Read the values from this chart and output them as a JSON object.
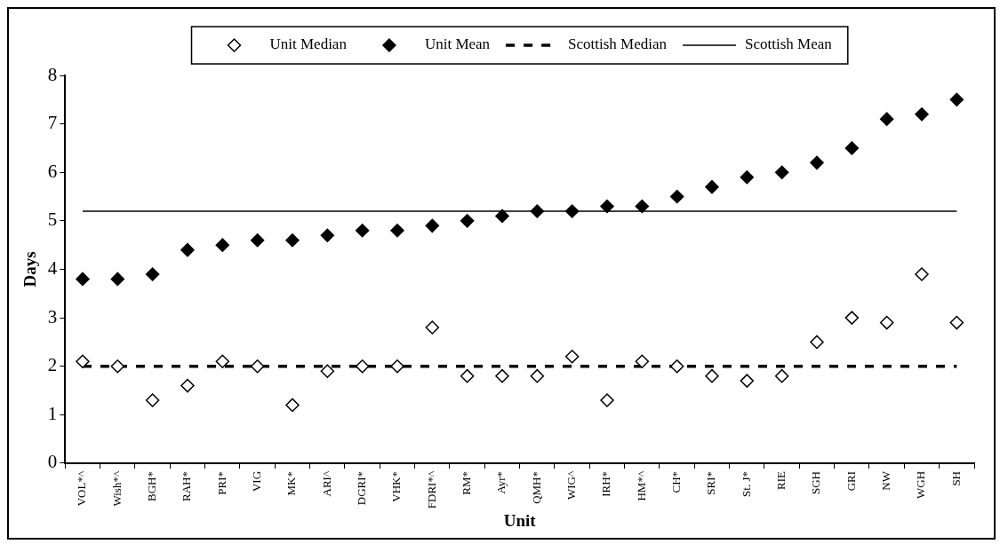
{
  "chart_data": {
    "type": "scatter",
    "xlabel": "Unit",
    "ylabel": "Days",
    "categories": [
      "VOL*^",
      "Wish*^",
      "BGH*",
      "RAH*",
      "PRI*",
      "VIG",
      "MK*",
      "ARI^",
      "DGRI*",
      "VHK*",
      "FDRI*^",
      "RM*",
      "Ayr*",
      "QMH*",
      "WIG^",
      "IRH*",
      "HM*^",
      "CH*",
      "SRI*",
      "St. J*",
      "RIE",
      "SGH",
      "GRI",
      "NW",
      "WGH",
      "SH"
    ],
    "series": [
      {
        "name": "Unit Median",
        "marker": "diamond",
        "color": "#ffffff",
        "values": [
          2.1,
          2.0,
          1.3,
          1.6,
          2.1,
          2.0,
          1.2,
          1.9,
          2.0,
          2.0,
          2.8,
          1.8,
          1.8,
          1.8,
          2.2,
          1.3,
          2.1,
          2.0,
          1.8,
          1.7,
          1.8,
          2.5,
          3.0,
          2.9,
          3.9,
          2.9
        ]
      },
      {
        "name": "Unit Mean",
        "marker": "diamond",
        "color": "#000000",
        "values": [
          3.8,
          3.8,
          3.9,
          4.4,
          4.5,
          4.6,
          4.6,
          4.7,
          4.8,
          4.8,
          4.9,
          5.0,
          5.1,
          5.2,
          5.2,
          5.3,
          5.3,
          5.5,
          5.7,
          5.9,
          6.0,
          6.2,
          6.5,
          7.1,
          7.2,
          7.5
        ]
      },
      {
        "name": "Scottish Median",
        "type": "line",
        "marker": "none",
        "line_style": "dashed",
        "color": "#000000",
        "values": [
          2,
          2,
          2,
          2,
          2,
          2,
          2,
          2,
          2,
          2,
          2,
          2,
          2,
          2,
          2,
          2,
          2,
          2,
          2,
          2,
          2,
          2,
          2,
          2,
          2,
          2
        ]
      },
      {
        "name": "Scottish Mean",
        "type": "line",
        "marker": "none",
        "line_style": "solid",
        "color": "#000000",
        "values": [
          5.2,
          5.2,
          5.2,
          5.2,
          5.2,
          5.2,
          5.2,
          5.2,
          5.2,
          5.2,
          5.2,
          5.2,
          5.2,
          5.2,
          5.2,
          5.2,
          5.2,
          5.2,
          5.2,
          5.2,
          5.2,
          5.2,
          5.2,
          5.2,
          5.2,
          5.2
        ]
      }
    ],
    "ylim": [
      0,
      8
    ],
    "yticks": [
      0,
      1,
      2,
      3,
      4,
      5,
      6,
      7,
      8
    ],
    "grid": false,
    "legend": "top"
  }
}
